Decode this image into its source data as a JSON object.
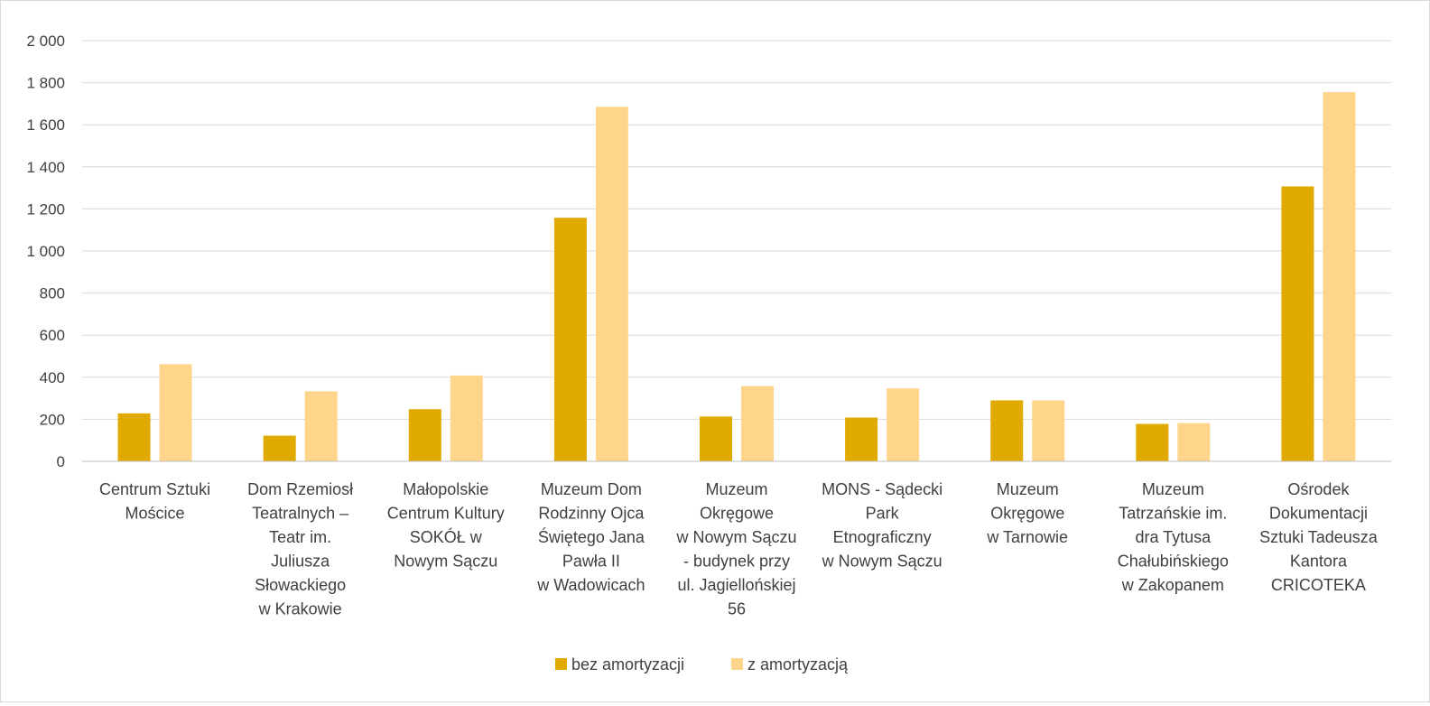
{
  "chart_data": {
    "type": "bar",
    "categories": [
      [
        "Centrum Sztuki",
        "Mościce"
      ],
      [
        "Dom Rzemiosł",
        "Teatralnych –",
        "Teatr im.",
        "Juliusza",
        "Słowackiego",
        "w Krakowie"
      ],
      [
        "Małopolskie",
        "Centrum Kultury",
        "SOKÓŁ w",
        "Nowym Sączu"
      ],
      [
        "Muzeum Dom",
        "Rodzinny Ojca",
        "Świętego Jana",
        "Pawła II",
        "w Wadowicach"
      ],
      [
        "Muzeum",
        "Okręgowe",
        "w Nowym Sączu",
        "- budynek przy",
        "ul. Jagiellońskiej",
        "56"
      ],
      [
        "MONS - Sądecki",
        "Park",
        "Etnograficzny",
        "w Nowym Sączu"
      ],
      [
        "Muzeum",
        "Okręgowe",
        "w Tarnowie"
      ],
      [
        "Muzeum",
        "Tatrzańskie im.",
        "dra Tytusa",
        "Chałubińskiego",
        "w Zakopanem"
      ],
      [
        "Ośrodek",
        "Dokumentacji",
        "Sztuki Tadeusza",
        "Kantora",
        "CRICOTEKA"
      ]
    ],
    "series": [
      {
        "name": "bez amortyzacji",
        "color": "#E0AA00",
        "values": [
          228,
          122,
          248,
          1158,
          213,
          208,
          290,
          178,
          1307
        ]
      },
      {
        "name": "z amortyzacją",
        "color": "#FFD58B",
        "values": [
          462,
          333,
          408,
          1685,
          358,
          347,
          290,
          182,
          1755
        ]
      }
    ],
    "ylim": [
      0,
      2000
    ],
    "yticks": [
      {
        "value": 0,
        "label": "0"
      },
      {
        "value": 200,
        "label": "200"
      },
      {
        "value": 400,
        "label": "400"
      },
      {
        "value": 600,
        "label": "600"
      },
      {
        "value": 800,
        "label": "800"
      },
      {
        "value": 1000,
        "label": "1 000"
      },
      {
        "value": 1200,
        "label": "1 200"
      },
      {
        "value": 1400,
        "label": "1 400"
      },
      {
        "value": 1600,
        "label": "1 600"
      },
      {
        "value": 1800,
        "label": "1 800"
      },
      {
        "value": 2000,
        "label": "2 000"
      }
    ],
    "grid": true,
    "gridColor": "#d9d9d9",
    "legend": "bottom"
  }
}
